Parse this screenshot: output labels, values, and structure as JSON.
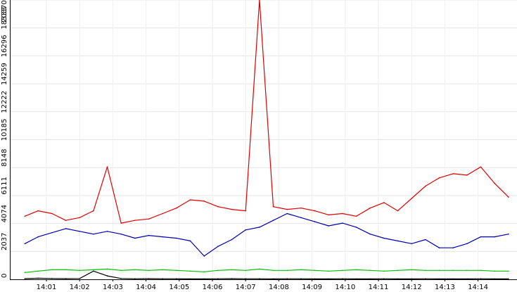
{
  "chart_data": {
    "type": "line",
    "title": "",
    "xlabel": "",
    "ylabel": "",
    "grid": true,
    "x_ticks": [
      "14:01",
      "14:02",
      "14:03",
      "14:04",
      "14:05",
      "14:06",
      "14:07",
      "14:08",
      "14:09",
      "14:10",
      "14:11",
      "14:12",
      "14:13",
      "14:14"
    ],
    "y_ticks": [
      0,
      2037,
      4074,
      6111,
      8148,
      10185,
      12222,
      14259,
      16296,
      18333,
      20370
    ],
    "ylim": [
      0,
      20370
    ],
    "x": [
      "14:00:21",
      "14:00:45",
      "14:01:10",
      "14:01:35",
      "14:02:00",
      "14:02:25",
      "14:02:50",
      "14:03:15",
      "14:03:40",
      "14:04:05",
      "14:04:30",
      "14:04:55",
      "14:05:20",
      "14:05:45",
      "14:06:10",
      "14:06:35",
      "14:07:00",
      "14:07:25",
      "14:07:50",
      "14:08:15",
      "14:08:40",
      "14:09:05",
      "14:09:30",
      "14:09:55",
      "14:10:20",
      "14:10:45",
      "14:11:10",
      "14:11:35",
      "14:12:00",
      "14:12:25",
      "14:12:50",
      "14:13:15",
      "14:13:40",
      "14:14:05",
      "14:14:30",
      "14:14:55"
    ],
    "series": [
      {
        "color": "#e00000",
        "values": [
          4600,
          5000,
          4800,
          4300,
          4500,
          5000,
          8200,
          4100,
          4300,
          4400,
          4800,
          5200,
          5800,
          5700,
          5300,
          5100,
          5000,
          20370,
          5300,
          5100,
          5200,
          5000,
          4700,
          4800,
          4600,
          5200,
          5600,
          5000,
          5900,
          6800,
          7400,
          7700,
          7600,
          8200,
          7000,
          6000
        ]
      },
      {
        "color": "#0000b0",
        "values": [
          2600,
          3100,
          3400,
          3700,
          3500,
          3300,
          3500,
          3300,
          3000,
          3200,
          3100,
          3000,
          2800,
          1700,
          2400,
          2900,
          3600,
          3800,
          4300,
          4800,
          4500,
          4200,
          3900,
          4100,
          3800,
          3300,
          3000,
          2800,
          2600,
          2900,
          2300,
          2300,
          2600,
          3100,
          3100,
          3300
        ]
      },
      {
        "color": "#00c000",
        "values": [
          500,
          600,
          700,
          700,
          650,
          700,
          750,
          650,
          700,
          650,
          700,
          650,
          600,
          550,
          650,
          700,
          650,
          750,
          650,
          650,
          700,
          650,
          600,
          650,
          700,
          650,
          600,
          650,
          700,
          650,
          650,
          650,
          650,
          650,
          600,
          600
        ]
      },
      {
        "color": "#000000",
        "values": [
          50,
          80,
          60,
          50,
          60,
          600,
          250,
          60,
          40,
          50,
          40,
          40,
          30,
          30,
          40,
          50,
          40,
          40,
          30,
          40,
          40,
          30,
          30,
          40,
          30,
          30,
          40,
          30,
          30,
          40,
          30,
          30,
          30,
          40,
          30,
          30
        ]
      }
    ]
  }
}
